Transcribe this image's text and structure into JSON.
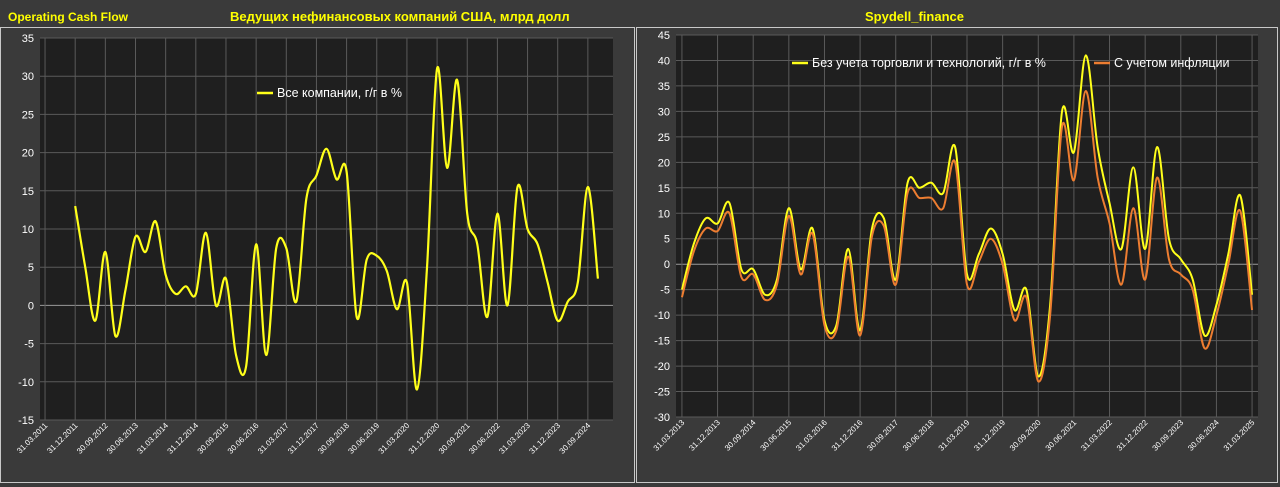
{
  "header": {
    "left_tag": "Operating Cash Flow",
    "left_title": "Ведущих нефинансовых компаний США, млрд долл",
    "right_title": "Spydell_finance"
  },
  "colors": {
    "background": "#3a3a3a",
    "plot_bg": "#1f1f1f",
    "grid": "#5a5a5a",
    "text": "#ffffff",
    "title": "#ffff00",
    "yellow": "#ffff1a",
    "orange": "#ed7d31"
  },
  "chart_data": [
    {
      "type": "line",
      "title": "Ведущих нефинансовых компаний США, млрд долл",
      "ylim": [
        -15,
        35
      ],
      "yticks": [
        -15,
        -10,
        -5,
        0,
        5,
        10,
        15,
        20,
        25,
        30,
        35
      ],
      "x_tick_labels": [
        "31.03.2011",
        "31.12.2011",
        "30.09.2012",
        "30.06.2013",
        "31.03.2014",
        "31.12.2014",
        "30.09.2015",
        "30.06.2016",
        "31.03.2017",
        "31.12.2017",
        "30.09.2018",
        "30.06.2019",
        "31.03.2020",
        "31.12.2020",
        "30.09.2021",
        "30.06.2022",
        "31.03.2023",
        "31.12.2023",
        "30.09.2024"
      ],
      "legend_position": "top-center",
      "grid": true,
      "series": [
        {
          "name": "Все компании, г/г в %",
          "color": "#ffff1a",
          "x_start": "31.12.2011",
          "step_quarters": 1,
          "values": [
            13,
            5,
            -2,
            7,
            -4,
            2,
            9,
            7,
            11,
            4,
            1.5,
            2.5,
            1.5,
            9.5,
            0,
            3.5,
            -6.5,
            -8,
            8,
            -6.5,
            7.5,
            7.5,
            0.5,
            14,
            17,
            20.5,
            16.5,
            17.5,
            -1.5,
            6,
            6.5,
            4.5,
            -0.5,
            3,
            -11,
            5,
            31,
            18,
            29.5,
            12,
            8,
            -1.5,
            12,
            0,
            15.5,
            10,
            8,
            3,
            -2,
            0.5,
            3,
            15.5,
            3.5
          ]
        }
      ]
    },
    {
      "type": "line",
      "title": "",
      "ylim": [
        -30,
        45
      ],
      "yticks": [
        -30,
        -25,
        -20,
        -15,
        -10,
        -5,
        0,
        5,
        10,
        15,
        20,
        25,
        30,
        35,
        40,
        45
      ],
      "x_tick_labels": [
        "31.03.2013",
        "31.12.2013",
        "30.09.2014",
        "30.06.2015",
        "31.03.2016",
        "31.12.2016",
        "30.09.2017",
        "30.06.2018",
        "31.03.2019",
        "31.12.2019",
        "30.09.2020",
        "30.06.2021",
        "31.03.2022",
        "31.12.2022",
        "30.09.2023",
        "30.06.2024",
        "31.03.2025"
      ],
      "legend_position": "top-right",
      "grid": true,
      "series": [
        {
          "name": "Без учета торговли и технологий, г/г в %",
          "color": "#ffff1a",
          "x_start": "31.03.2013",
          "step_quarters": 1,
          "values": [
            -5,
            4,
            9,
            8,
            12,
            -1,
            -1,
            -6,
            -3,
            11,
            -1,
            7,
            -11,
            -12,
            3,
            -13,
            7,
            9,
            -3,
            16,
            15,
            16,
            14,
            23,
            -2,
            2,
            7,
            2,
            -9,
            -5,
            -22,
            -8,
            30,
            22,
            41,
            23,
            12,
            3,
            19,
            3,
            23,
            5,
            1,
            -3,
            -14,
            -8,
            2,
            13.5,
            -6
          ]
        },
        {
          "name": "С учетом инфляции",
          "color": "#ed7d31",
          "x_start": "31.03.2013",
          "step_quarters": 1,
          "values": [
            -6.5,
            2.5,
            7,
            6.5,
            10,
            -2.5,
            -2,
            -7,
            -4,
            9.5,
            -2,
            6,
            -12,
            -13,
            1.5,
            -14,
            5.5,
            7.5,
            -4,
            14,
            13,
            13,
            11,
            20,
            -4,
            0.5,
            5,
            0,
            -11,
            -6.5,
            -23,
            -10,
            27,
            16.5,
            34,
            17,
            8,
            -4,
            11,
            -3,
            17,
            1,
            -2,
            -5,
            -16.5,
            -10,
            0,
            10.5,
            -9
          ]
        }
      ]
    }
  ]
}
